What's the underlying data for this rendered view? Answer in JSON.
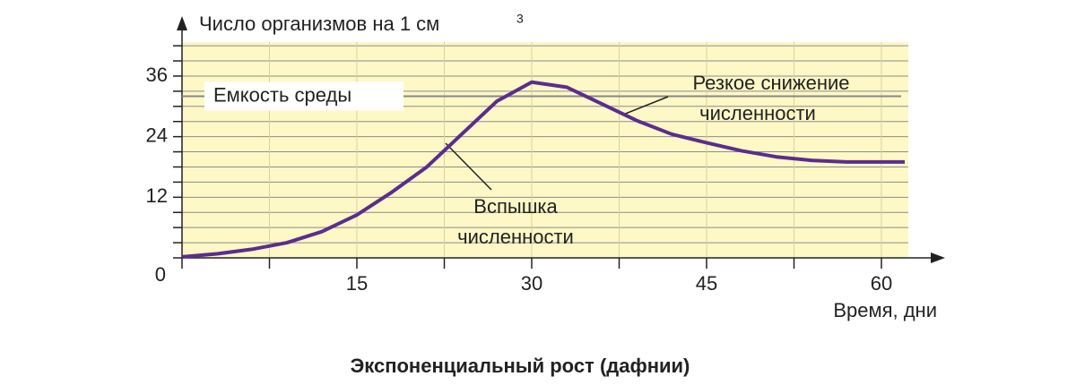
{
  "chart_data": {
    "type": "line",
    "title": "Экспоненциальный рост (дафнии)",
    "ylabel": "Число организмов на 1 см",
    "ylabel_sup": "3",
    "xlabel": "Время, дни",
    "x": [
      0,
      3,
      6,
      9,
      12,
      15,
      18,
      21,
      24,
      27,
      30,
      33,
      36,
      39,
      42,
      45,
      48,
      51,
      54,
      57,
      60,
      62
    ],
    "series": [
      {
        "name": "Численность",
        "color": "#5b2d8e",
        "values": [
          0.2,
          0.8,
          1.7,
          3.0,
          5.2,
          8.5,
          13,
          18,
          24.5,
          31,
          34.8,
          33.8,
          30.5,
          27.2,
          24.5,
          22.8,
          21.2,
          20,
          19.3,
          19,
          19,
          19
        ]
      }
    ],
    "xlim": [
      0,
      64
    ],
    "ylim": [
      0,
      42
    ],
    "xticks": [
      15,
      30,
      45,
      60
    ],
    "xminorticks": [
      7.5,
      22.5,
      37.5,
      52.5
    ],
    "yticks": [
      0,
      12,
      24,
      36
    ],
    "yminorticks": [
      3,
      6,
      9,
      15,
      18,
      21,
      27,
      30,
      33,
      39,
      42
    ],
    "grid": true,
    "capacity": {
      "value": 32,
      "label": "Емкость среды"
    },
    "annotations": [
      {
        "lines": [
          "Вспышка",
          "численности"
        ]
      },
      {
        "lines": [
          "Резкое снижение",
          "численности"
        ]
      }
    ]
  }
}
